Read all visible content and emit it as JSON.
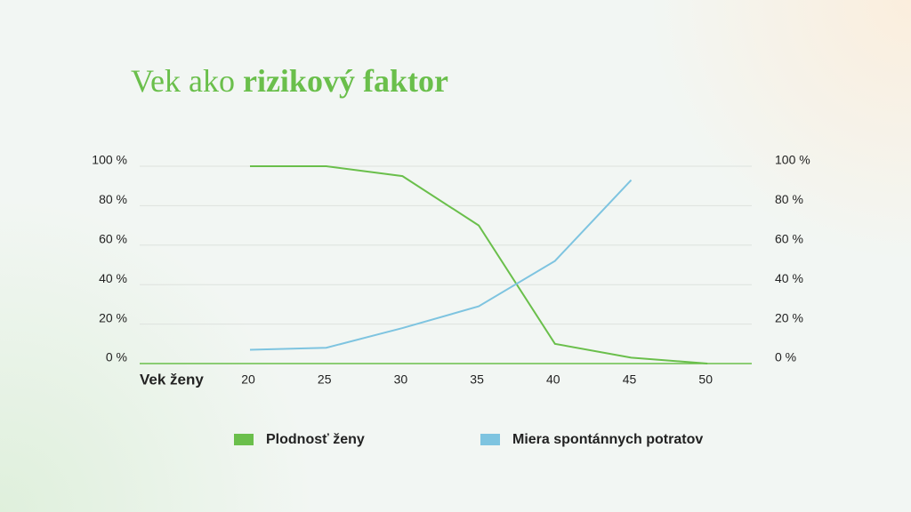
{
  "chart_data": {
    "type": "line",
    "title": {
      "plain": "Vek ako",
      "bold": "rizikový faktor"
    },
    "x_label": "Vek ženy",
    "categories": [
      "20",
      "25",
      "30",
      "35",
      "40",
      "45",
      "50"
    ],
    "series": [
      {
        "name": "Plodnosť ženy",
        "color": "#6abf4b",
        "values": [
          100,
          100,
          95,
          70,
          10,
          3,
          0
        ]
      },
      {
        "name": "Miera spontánnych potratov",
        "color": "#7ec4e0",
        "values": [
          7,
          8,
          18,
          29,
          52,
          93,
          null
        ]
      }
    ],
    "ylim": [
      0,
      100
    ],
    "yticks": [
      {
        "value": 0,
        "label": "0 %"
      },
      {
        "value": 20,
        "label": "20 %"
      },
      {
        "value": 40,
        "label": "40 %"
      },
      {
        "value": 60,
        "label": "60 %"
      },
      {
        "value": 80,
        "label": "80 %"
      },
      {
        "value": 100,
        "label": "100 %"
      }
    ],
    "y2lim": [
      0,
      100
    ],
    "y2ticks": [
      {
        "value": 0,
        "label": "0 %"
      },
      {
        "value": 20,
        "label": "20 %"
      },
      {
        "value": 40,
        "label": "40 %"
      },
      {
        "value": 60,
        "label": "60 %"
      },
      {
        "value": 80,
        "label": "80 %"
      },
      {
        "value": 100,
        "label": "100 %"
      }
    ],
    "grid": true
  }
}
